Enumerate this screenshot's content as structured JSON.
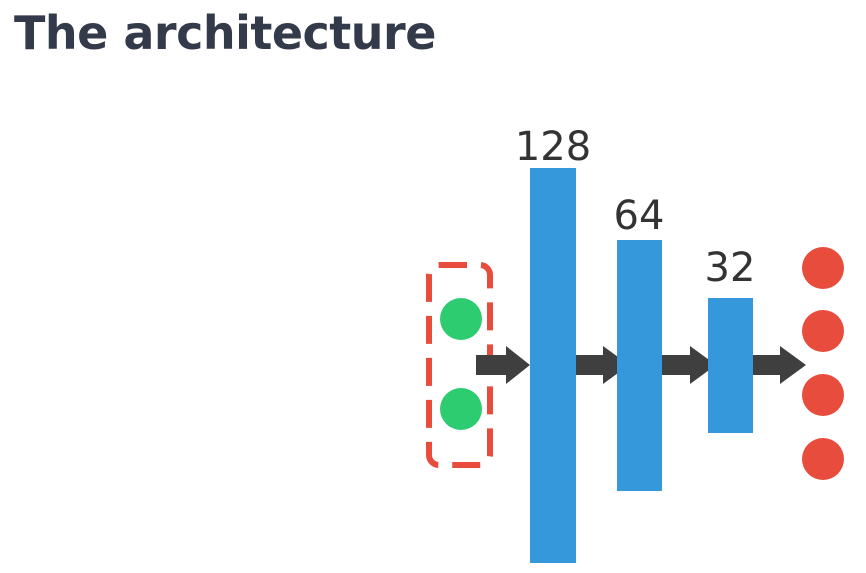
{
  "title": "The architecture",
  "diagram": {
    "input_nodes": 2,
    "output_nodes": 4,
    "layers": [
      {
        "label": "128",
        "units": 128
      },
      {
        "label": "64",
        "units": 64
      },
      {
        "label": "32",
        "units": 32
      }
    ],
    "colors": {
      "layer": "#3498db",
      "input_node": "#2ecc71",
      "output_node": "#e74c3c",
      "input_box_border": "#e74c3c",
      "arrow": "#3f3f3f",
      "title": "#333a4a"
    }
  }
}
